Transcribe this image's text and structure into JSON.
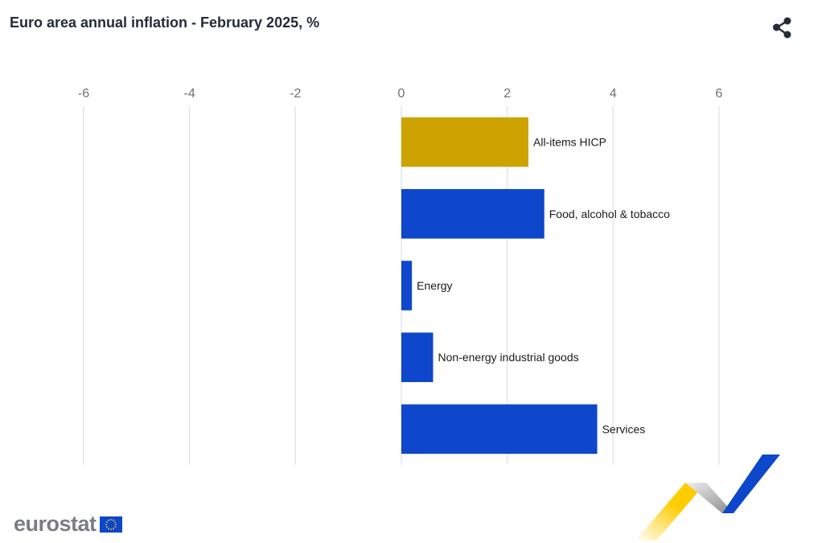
{
  "header": {
    "title": "Euro area annual inflation - February 2025, %"
  },
  "icons": {
    "share": "share-icon",
    "eu_flag": "eu-flag-icon"
  },
  "colors": {
    "headline_bar": "#cca300",
    "component_bar": "#0e47cb",
    "gridline": "#e4e6ee",
    "tick_text": "#6e7079"
  },
  "chart_data": {
    "type": "bar",
    "orientation": "horizontal",
    "title": "Euro area annual inflation - February 2025, %",
    "xlim": [
      -6,
      6
    ],
    "xticks": [
      -6,
      -4,
      -2,
      0,
      2,
      4,
      6
    ],
    "xtick_labels": [
      "-6",
      "-4",
      "-2",
      "0",
      "2",
      "4",
      "6"
    ],
    "axis_position": "top",
    "grid": true,
    "categories": [
      "All-items HICP",
      "Food, alcohol & tobacco",
      "Energy",
      "Non-energy industrial goods",
      "Services"
    ],
    "values": [
      2.4,
      2.7,
      0.2,
      0.6,
      3.7
    ],
    "bar_colors": [
      "#cca300",
      "#0e47cb",
      "#0e47cb",
      "#0e47cb",
      "#0e47cb"
    ]
  },
  "footer": {
    "brand": "eurostat"
  }
}
